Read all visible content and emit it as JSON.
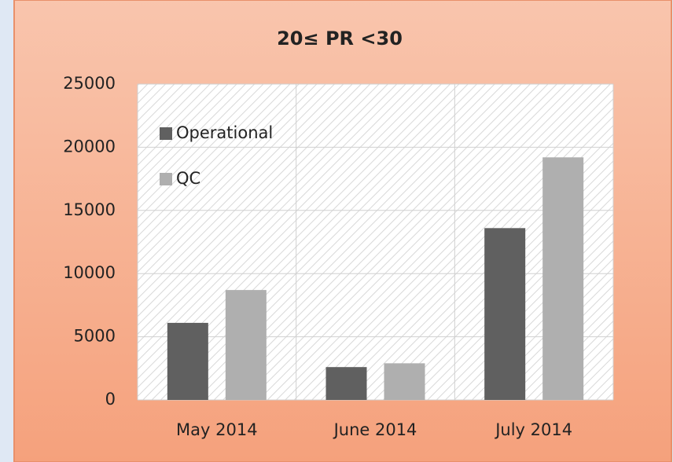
{
  "chart_data": {
    "type": "bar",
    "title": "20≤ PR <30",
    "categories": [
      "May 2014",
      "June 2014",
      "July 2014"
    ],
    "series": [
      {
        "name": "Operational",
        "color": "#606060",
        "values": [
          6100,
          2600,
          13600
        ]
      },
      {
        "name": "QC",
        "color": "#afafaf",
        "values": [
          8700,
          2900,
          19200
        ]
      }
    ],
    "ylim": [
      0,
      25000
    ],
    "yticks": [
      0,
      5000,
      10000,
      15000,
      20000,
      25000
    ],
    "grid": true,
    "legend": "top-left"
  }
}
